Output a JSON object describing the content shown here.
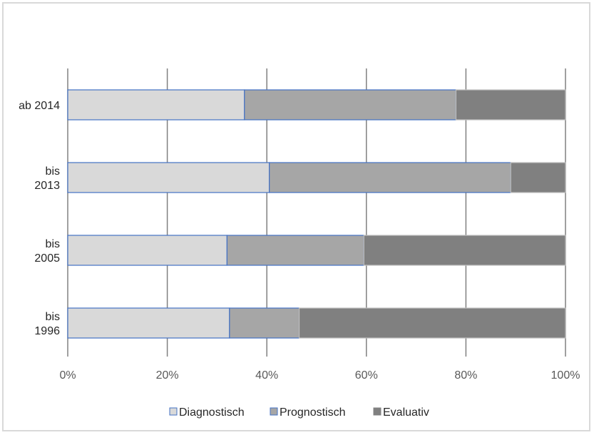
{
  "chart_data": {
    "type": "bar",
    "orientation": "horizontal",
    "stacked": "percent",
    "categories": [
      [
        "ab 2014"
      ],
      [
        "bis",
        "2013"
      ],
      [
        "bis",
        "2005"
      ],
      [
        "bis",
        "1996"
      ]
    ],
    "series": [
      {
        "name": "Diagnostisch",
        "color": "#d9d9d9",
        "values": [
          35.5,
          40.5,
          32,
          32.5
        ]
      },
      {
        "name": "Prognostisch",
        "color": "#a6a6a6",
        "values": [
          42.5,
          48.5,
          27.5,
          14
        ]
      },
      {
        "name": "Evaluativ",
        "color": "#808080",
        "values": [
          22,
          11,
          40.5,
          53.5
        ]
      }
    ],
    "xticks": [
      "0%",
      "20%",
      "40%",
      "60%",
      "80%",
      "100%"
    ],
    "xlim": [
      0,
      100
    ],
    "grid": true,
    "legend": "bottom",
    "border_color": "#4472c4"
  }
}
